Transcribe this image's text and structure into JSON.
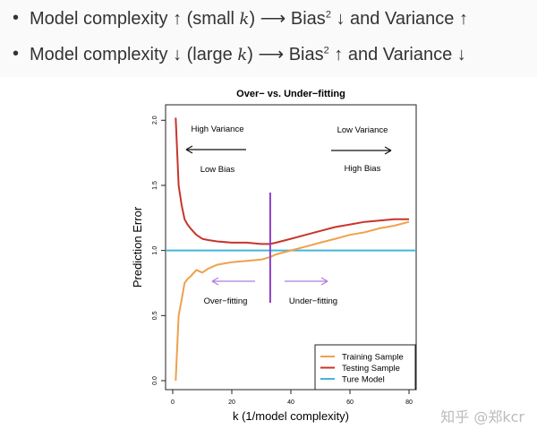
{
  "bullets": [
    {
      "pre": "Model complexity ↑ (small ",
      "var": "k",
      "post1": ") ⟶ Bias",
      "sup": "2",
      "post2": " ↓ and Variance ↑"
    },
    {
      "pre": "Model complexity ↓ (large ",
      "var": "k",
      "post1": ") ⟶ Bias",
      "sup": "2",
      "post2": " ↑ and Variance ↓"
    }
  ],
  "watermark": "知乎 @郑kcr",
  "chart_data": {
    "type": "line",
    "title": "Over− vs. Under−fitting",
    "xlabel": "k (1/model complexity)",
    "ylabel": "Prediction Error",
    "xlim": [
      0,
      80
    ],
    "ylim": [
      0,
      2.05
    ],
    "xticks": [
      "0",
      "20",
      "40",
      "60",
      "80"
    ],
    "yticks": [
      "0.0",
      "0.5",
      "1.0",
      "1.5",
      "2.0"
    ],
    "legend_position": "bottom-right",
    "series": [
      {
        "name": "Training Sample",
        "color": "#f0a04b",
        "x": [
          1,
          2,
          3,
          4,
          5,
          6,
          8,
          10,
          12,
          15,
          20,
          25,
          30,
          33,
          35,
          40,
          45,
          50,
          55,
          60,
          65,
          70,
          75,
          80
        ],
        "y": [
          0.0,
          0.5,
          0.62,
          0.75,
          0.78,
          0.8,
          0.85,
          0.83,
          0.86,
          0.89,
          0.91,
          0.92,
          0.93,
          0.95,
          0.97,
          1.0,
          1.03,
          1.06,
          1.09,
          1.12,
          1.14,
          1.17,
          1.19,
          1.22
        ]
      },
      {
        "name": "Testing Sample",
        "color": "#c8352b",
        "x": [
          1,
          2,
          3,
          4,
          5,
          6,
          8,
          10,
          12,
          15,
          20,
          25,
          30,
          33,
          35,
          40,
          45,
          50,
          55,
          60,
          65,
          70,
          75,
          80
        ],
        "y": [
          2.02,
          1.5,
          1.35,
          1.24,
          1.2,
          1.17,
          1.12,
          1.09,
          1.08,
          1.07,
          1.06,
          1.06,
          1.05,
          1.05,
          1.06,
          1.09,
          1.12,
          1.15,
          1.18,
          1.2,
          1.22,
          1.23,
          1.24,
          1.24
        ]
      },
      {
        "name": "Ture Model",
        "color": "#45b6d8",
        "x": [
          0,
          80
        ],
        "y": [
          1.0,
          1.0
        ]
      }
    ],
    "annotations": {
      "high_variance": "High Variance",
      "low_bias": "Low Bias",
      "low_variance": "Low Variance",
      "high_bias": "High Bias",
      "over_fitting": "Over−fitting",
      "under_fitting": "Under−fitting"
    },
    "divider_x": 33,
    "divider_color": "#8a3fc4",
    "arrow_color_lower": "#b07adf"
  }
}
